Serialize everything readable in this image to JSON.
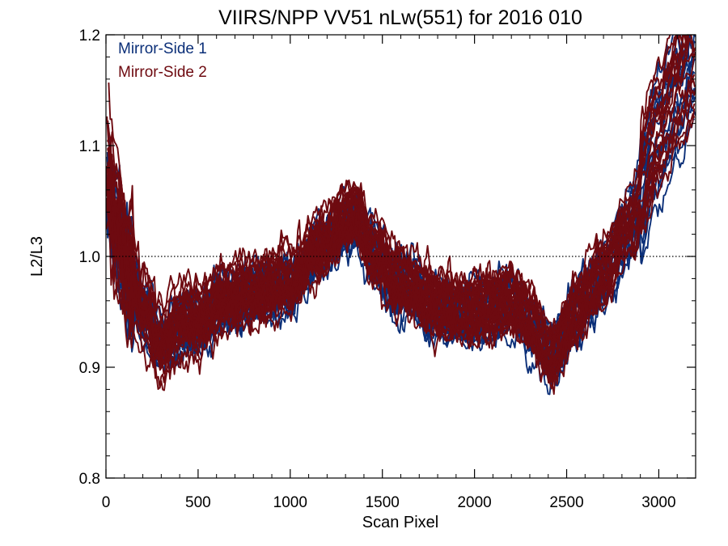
{
  "chart_data": {
    "type": "line",
    "title": "VIIRS/NPP VV51 nLw(551) for 2016 010",
    "xlabel": "Scan Pixel",
    "ylabel": "L2/L3",
    "xlim": [
      0,
      3200
    ],
    "ylim": [
      0.8,
      1.2
    ],
    "xticks": [
      "0",
      "500",
      "1000",
      "1500",
      "2000",
      "2500",
      "3000"
    ],
    "yticks": [
      "0.8",
      "0.9",
      "1.0",
      "1.1",
      "1.2"
    ],
    "reference_line": {
      "y": 1.0,
      "style": "dotted"
    },
    "grid": false,
    "legend_position": "top-left",
    "colors": {
      "mirror_side_1": "#0b2f78",
      "mirror_side_2": "#6e0a10"
    },
    "profile_knots": {
      "x": [
        0,
        50,
        120,
        200,
        300,
        420,
        500,
        650,
        800,
        1000,
        1150,
        1300,
        1360,
        1450,
        1600,
        1800,
        2000,
        2200,
        2300,
        2420,
        2550,
        2700,
        2850,
        3000,
        3100,
        3200
      ],
      "y": [
        1.08,
        1.03,
        0.99,
        0.95,
        0.92,
        0.94,
        0.94,
        0.96,
        0.965,
        0.975,
        1.005,
        1.03,
        1.035,
        1.0,
        0.975,
        0.955,
        0.95,
        0.96,
        0.94,
        0.91,
        0.95,
        0.985,
        1.03,
        1.11,
        1.15,
        1.18
      ]
    },
    "series": [
      {
        "name": "Mirror-Side 1",
        "color": "#0b2f78",
        "curves": 22,
        "x_end_range": [
          2180,
          3200
        ]
      },
      {
        "name": "Mirror-Side 2",
        "color": "#6e0a10",
        "curves": 30,
        "x_end_range": [
          2180,
          3200
        ]
      }
    ]
  }
}
